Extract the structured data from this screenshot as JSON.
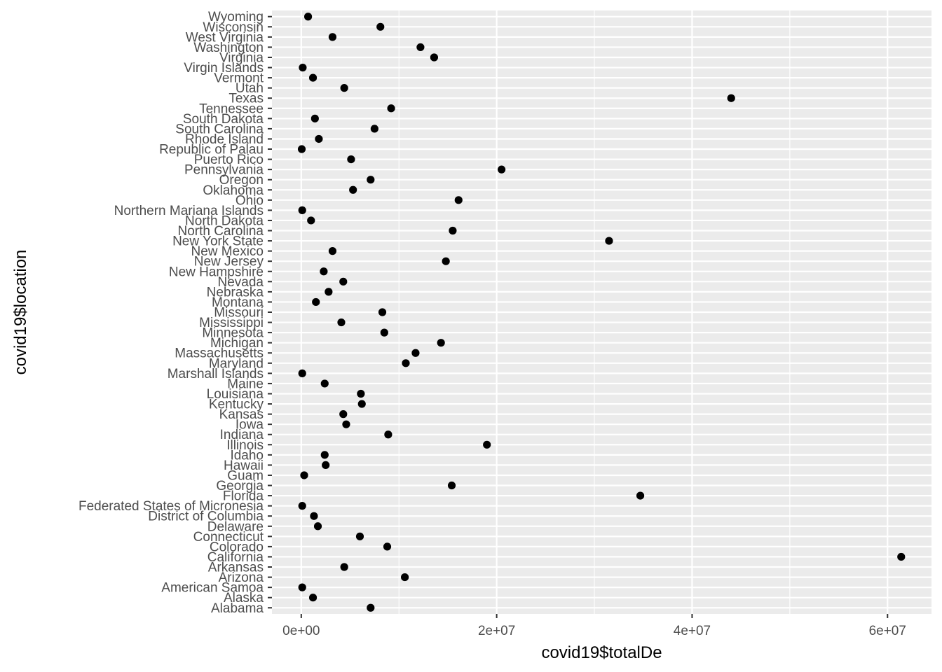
{
  "chart_data": {
    "type": "scatter",
    "title": "",
    "xlabel": "covid19$totalDe",
    "ylabel": "covid19$location",
    "xlim": [
      -3000000,
      64500000
    ],
    "x_ticks": [
      0,
      20000000,
      40000000,
      60000000
    ],
    "x_tick_labels": [
      "0e+00",
      "2e+07",
      "4e+07",
      "6e+07"
    ],
    "grid": true,
    "legend": "none",
    "colors": {
      "panel": "#ebebeb",
      "grid": "#ffffff",
      "point": "#000000",
      "axis_text": "#4d4d4d",
      "title_text": "#000000"
    },
    "categories": [
      "Alabama",
      "Alaska",
      "American Samoa",
      "Arizona",
      "Arkansas",
      "California",
      "Colorado",
      "Connecticut",
      "Delaware",
      "District of Columbia",
      "Federated States of Micronesia",
      "Florida",
      "Georgia",
      "Guam",
      "Hawaii",
      "Idaho",
      "Illinois",
      "Indiana",
      "Iowa",
      "Kansas",
      "Kentucky",
      "Louisiana",
      "Maine",
      "Marshall Islands",
      "Maryland",
      "Massachusetts",
      "Michigan",
      "Minnesota",
      "Mississippi",
      "Missouri",
      "Montana",
      "Nebraska",
      "Nevada",
      "New Hampshire",
      "New Jersey",
      "New Mexico",
      "New York State",
      "North Carolina",
      "North Dakota",
      "Northern Mariana Islands",
      "Ohio",
      "Oklahoma",
      "Oregon",
      "Pennsylvania",
      "Puerto Rico",
      "Republic of Palau",
      "Rhode Island",
      "South Carolina",
      "South Dakota",
      "Tennessee",
      "Texas",
      "Utah",
      "Vermont",
      "Virgin Islands",
      "Virginia",
      "Washington",
      "West Virginia",
      "Wisconsin",
      "Wyoming"
    ],
    "values": [
      7100000,
      1200000,
      100000,
      10600000,
      4400000,
      61400000,
      8800000,
      6000000,
      1700000,
      1300000,
      100000,
      34700000,
      15400000,
      300000,
      2500000,
      2400000,
      19000000,
      8900000,
      4600000,
      4300000,
      6200000,
      6100000,
      2400000,
      100000,
      10700000,
      11700000,
      14300000,
      8500000,
      4100000,
      8300000,
      1500000,
      2800000,
      4300000,
      2300000,
      14800000,
      3200000,
      31500000,
      15500000,
      1000000,
      100000,
      16100000,
      5300000,
      7100000,
      20500000,
      5100000,
      50000,
      1800000,
      7500000,
      1400000,
      9200000,
      44000000,
      4400000,
      1200000,
      150000,
      13600000,
      12200000,
      3200000,
      8100000,
      700000
    ]
  }
}
